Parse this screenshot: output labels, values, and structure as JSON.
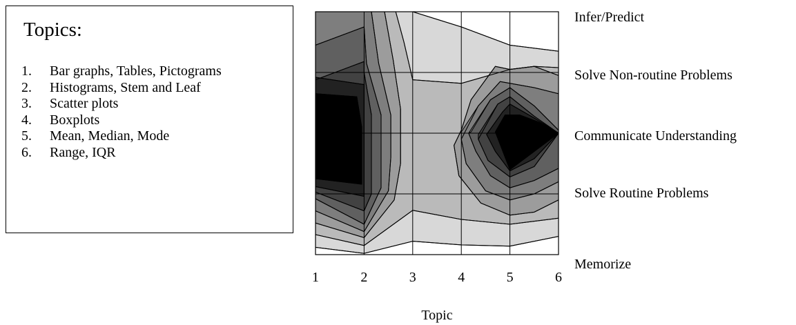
{
  "legend": {
    "title": "Topics:",
    "items": [
      {
        "num": "1.",
        "label": "Bar graphs, Tables, Pictograms"
      },
      {
        "num": "2.",
        "label": "Histograms, Stem and Leaf"
      },
      {
        "num": "3.",
        "label": "Scatter plots"
      },
      {
        "num": "4.",
        "label": "Boxplots"
      },
      {
        "num": "5.",
        "label": "Mean, Median, Mode"
      },
      {
        "num": "6.",
        "label": "Range, IQR"
      }
    ]
  },
  "chart_data": {
    "type": "heatmap",
    "subtype": "filled-contour",
    "title": "",
    "xlabel": "Topic",
    "ylabel": "",
    "x": [
      1,
      2,
      3,
      4,
      5,
      6
    ],
    "x_tick_labels": [
      "1",
      "2",
      "3",
      "4",
      "5",
      "6"
    ],
    "xlim": [
      1,
      6
    ],
    "y_levels": [
      "Memorize",
      "Solve Routine Problems",
      "Communicate Understanding",
      "Solve Non-routine Problems",
      "Infer/Predict"
    ],
    "ylim": [
      0,
      4
    ],
    "grid": true,
    "legend": "none",
    "colorscale": [
      "#ffffff",
      "#d8d8d8",
      "#bababa",
      "#9c9c9c",
      "#7e7e7e",
      "#606060",
      "#424242",
      "#222222",
      "#000000"
    ],
    "shade_levels": [
      0,
      1,
      2,
      3,
      4,
      5,
      6,
      7,
      8
    ],
    "regions": [
      {
        "level": 1,
        "points": [
          [
            1,
            0.12
          ],
          [
            2,
            0.02
          ],
          [
            3,
            0.22
          ],
          [
            4,
            0.16
          ],
          [
            5,
            0.14
          ],
          [
            6,
            0.3
          ],
          [
            6,
            3.35
          ],
          [
            5,
            3.45
          ],
          [
            4,
            3.75
          ],
          [
            3,
            4
          ],
          [
            1,
            4
          ]
        ]
      },
      {
        "level": 2,
        "points": [
          [
            1,
            0.33
          ],
          [
            2,
            0.15
          ],
          [
            3,
            0.73
          ],
          [
            4,
            0.58
          ],
          [
            5,
            0.5
          ],
          [
            6,
            0.6
          ],
          [
            6,
            3.08
          ],
          [
            5.5,
            3.1
          ],
          [
            5,
            3.05
          ],
          [
            4,
            2.82
          ],
          [
            3,
            2.88
          ],
          [
            2.82,
            3.5
          ],
          [
            2.65,
            4
          ],
          [
            1,
            4
          ]
        ]
      },
      {
        "level": 3,
        "points": [
          [
            1,
            0.52
          ],
          [
            2,
            0.28
          ],
          [
            2.62,
            0.9
          ],
          [
            2.75,
            1.5
          ],
          [
            2.75,
            2.4
          ],
          [
            2.6,
            3.2
          ],
          [
            2.42,
            4
          ],
          [
            1,
            4
          ]
        ]
      },
      {
        "level": 3,
        "points": [
          [
            4,
            2.05
          ],
          [
            4.2,
            2.55
          ],
          [
            4.7,
            3.1
          ],
          [
            5,
            3.05
          ],
          [
            5.5,
            3.1
          ],
          [
            6,
            2.95
          ],
          [
            6,
            0.9
          ],
          [
            5.5,
            0.7
          ],
          [
            5,
            0.65
          ],
          [
            4.4,
            0.85
          ],
          [
            3.95,
            1.3
          ],
          [
            3.85,
            1.8
          ]
        ]
      },
      {
        "level": 4,
        "points": [
          [
            1,
            0.72
          ],
          [
            2,
            0.38
          ],
          [
            2.5,
            1.05
          ],
          [
            2.55,
            1.6
          ],
          [
            2.55,
            2.3
          ],
          [
            2.3,
            3.15
          ],
          [
            2.15,
            4
          ],
          [
            1,
            4
          ]
        ]
      },
      {
        "level": 4,
        "points": [
          [
            4,
            2.02
          ],
          [
            4.35,
            2.45
          ],
          [
            4.8,
            2.85
          ],
          [
            5.5,
            2.75
          ],
          [
            6,
            2.65
          ],
          [
            6,
            1.2
          ],
          [
            5.5,
            1.0
          ],
          [
            5,
            0.9
          ],
          [
            4.5,
            1.05
          ],
          [
            4.1,
            1.5
          ],
          [
            4,
            1.9
          ]
        ]
      },
      {
        "level": 5,
        "points": [
          [
            1,
            0.92
          ],
          [
            2,
            0.5
          ],
          [
            2.35,
            1.1
          ],
          [
            2.35,
            1.65
          ],
          [
            2.35,
            2.3
          ],
          [
            2.05,
            3.15
          ],
          [
            2,
            3.75
          ],
          [
            1,
            3.45
          ]
        ]
      },
      {
        "level": 5,
        "points": [
          [
            4.2,
            2.02
          ],
          [
            4.6,
            2.55
          ],
          [
            5,
            2.75
          ],
          [
            5.5,
            2.45
          ],
          [
            6,
            2.05
          ],
          [
            6,
            1.42
          ],
          [
            5.5,
            1.22
          ],
          [
            5,
            1.1
          ],
          [
            4.6,
            1.3
          ],
          [
            4.3,
            1.7
          ],
          [
            4.15,
            2.0
          ]
        ]
      },
      {
        "level": 6,
        "points": [
          [
            1,
            1.03
          ],
          [
            2,
            0.72
          ],
          [
            2.15,
            1.0
          ],
          [
            2.15,
            1.85
          ],
          [
            2.15,
            2.3
          ],
          [
            2.0,
            3.0
          ],
          [
            2,
            3.18
          ],
          [
            1,
            2.88
          ]
        ]
      },
      {
        "level": 6,
        "points": [
          [
            4.35,
            1.98
          ],
          [
            4.75,
            2.48
          ],
          [
            5,
            2.6
          ],
          [
            5.5,
            2.28
          ],
          [
            6,
            2.0
          ],
          [
            5.5,
            1.45
          ],
          [
            5,
            1.28
          ],
          [
            4.55,
            1.55
          ],
          [
            4.35,
            1.9
          ]
        ]
      },
      {
        "level": 7,
        "points": [
          [
            1,
            1.12
          ],
          [
            2,
            0.96
          ],
          [
            2,
            2.8
          ],
          [
            1,
            2.92
          ]
        ]
      },
      {
        "level": 7,
        "points": [
          [
            4.52,
            1.98
          ],
          [
            4.85,
            2.35
          ],
          [
            5,
            2.48
          ],
          [
            5.5,
            2.25
          ],
          [
            6,
            2.0
          ],
          [
            5.5,
            1.58
          ],
          [
            5,
            1.38
          ],
          [
            4.7,
            1.7
          ]
        ]
      },
      {
        "level": 8,
        "points": [
          [
            1,
            1.25
          ],
          [
            1.95,
            1.16
          ],
          [
            1.95,
            2.1
          ],
          [
            1.85,
            2.6
          ],
          [
            1,
            2.65
          ]
        ]
      },
      {
        "level": 8,
        "points": [
          [
            4.7,
            2.02
          ],
          [
            4.9,
            2.3
          ],
          [
            5.2,
            2.3
          ],
          [
            5.6,
            2.18
          ],
          [
            6,
            2.0
          ],
          [
            5,
            1.4
          ]
        ]
      }
    ],
    "contour_lines": [
      [
        [
          1,
          0.12
        ],
        [
          2,
          0.02
        ],
        [
          3,
          0.22
        ],
        [
          4,
          0.16
        ],
        [
          5,
          0.14
        ],
        [
          6,
          0.3
        ]
      ],
      [
        [
          1,
          0.33
        ],
        [
          2,
          0.15
        ],
        [
          3,
          0.73
        ],
        [
          4,
          0.58
        ],
        [
          5,
          0.5
        ],
        [
          6,
          0.6
        ]
      ],
      [
        [
          1,
          0.52
        ],
        [
          2,
          0.28
        ],
        [
          2.62,
          0.9
        ],
        [
          2.75,
          1.5
        ],
        [
          2.75,
          2.4
        ],
        [
          2.6,
          3.2
        ],
        [
          2.42,
          4
        ]
      ],
      [
        [
          1,
          0.72
        ],
        [
          2,
          0.38
        ],
        [
          2.5,
          1.05
        ],
        [
          2.55,
          1.6
        ],
        [
          2.55,
          2.3
        ],
        [
          2.3,
          3.15
        ],
        [
          2.15,
          4
        ]
      ],
      [
        [
          1,
          0.92
        ],
        [
          2,
          0.5
        ],
        [
          2.35,
          1.1
        ],
        [
          2.35,
          1.65
        ],
        [
          2.35,
          2.3
        ],
        [
          2.05,
          3.15
        ],
        [
          2,
          3.75
        ],
        [
          1,
          3.45
        ]
      ],
      [
        [
          1,
          1.03
        ],
        [
          2,
          0.72
        ],
        [
          2.15,
          1.0
        ],
        [
          2.15,
          1.85
        ],
        [
          2.15,
          2.3
        ],
        [
          2.0,
          3.0
        ],
        [
          2,
          3.18
        ],
        [
          1,
          2.88
        ]
      ],
      [
        [
          1,
          1.12
        ],
        [
          2,
          0.96
        ],
        [
          2,
          2.8
        ],
        [
          1,
          2.92
        ]
      ],
      [
        [
          1,
          1.25
        ],
        [
          1.95,
          1.16
        ],
        [
          1.95,
          2.1
        ],
        [
          1.85,
          2.6
        ],
        [
          1,
          2.65
        ]
      ],
      [
        [
          6,
          0.9
        ],
        [
          5.5,
          0.7
        ],
        [
          5,
          0.65
        ],
        [
          4.4,
          0.85
        ],
        [
          3.95,
          1.3
        ],
        [
          3.85,
          1.8
        ],
        [
          4,
          2.05
        ],
        [
          4.2,
          2.55
        ],
        [
          4.7,
          3.1
        ],
        [
          5,
          3.05
        ],
        [
          5.5,
          3.1
        ],
        [
          6,
          2.95
        ]
      ],
      [
        [
          6,
          1.2
        ],
        [
          5.5,
          1.0
        ],
        [
          5,
          0.9
        ],
        [
          4.5,
          1.05
        ],
        [
          4.1,
          1.5
        ],
        [
          4,
          1.9
        ],
        [
          4.35,
          2.45
        ],
        [
          4.8,
          2.85
        ],
        [
          5.5,
          2.75
        ],
        [
          6,
          2.65
        ]
      ],
      [
        [
          6,
          1.42
        ],
        [
          5.5,
          1.22
        ],
        [
          5,
          1.1
        ],
        [
          4.6,
          1.3
        ],
        [
          4.3,
          1.7
        ],
        [
          4.15,
          2.0
        ],
        [
          4.6,
          2.55
        ],
        [
          5,
          2.75
        ],
        [
          5.5,
          2.45
        ],
        [
          6,
          2.05
        ]
      ],
      [
        [
          6,
          2.0
        ],
        [
          5.5,
          1.45
        ],
        [
          5,
          1.28
        ],
        [
          4.55,
          1.55
        ],
        [
          4.35,
          1.9
        ],
        [
          4.75,
          2.48
        ],
        [
          5,
          2.6
        ],
        [
          5.5,
          2.28
        ],
        [
          6,
          2.0
        ]
      ],
      [
        [
          6,
          2.0
        ],
        [
          5.5,
          1.58
        ],
        [
          5,
          1.38
        ],
        [
          4.7,
          1.7
        ],
        [
          4.52,
          1.98
        ],
        [
          4.85,
          2.35
        ],
        [
          5,
          2.48
        ],
        [
          5.5,
          2.25
        ],
        [
          6,
          2.0
        ]
      ],
      [
        [
          6,
          2.0
        ],
        [
          5,
          1.4
        ],
        [
          4.7,
          2.02
        ],
        [
          4.9,
          2.3
        ],
        [
          5.2,
          2.3
        ],
        [
          5.6,
          2.18
        ],
        [
          6,
          2.0
        ]
      ],
      [
        [
          6,
          3.35
        ],
        [
          5,
          3.45
        ],
        [
          4,
          3.75
        ],
        [
          3,
          4
        ]
      ],
      [
        [
          6,
          3.08
        ],
        [
          5.5,
          3.1
        ],
        [
          5,
          3.05
        ],
        [
          4,
          2.82
        ],
        [
          3,
          2.88
        ],
        [
          2.82,
          3.5
        ],
        [
          2.65,
          4
        ]
      ]
    ]
  }
}
